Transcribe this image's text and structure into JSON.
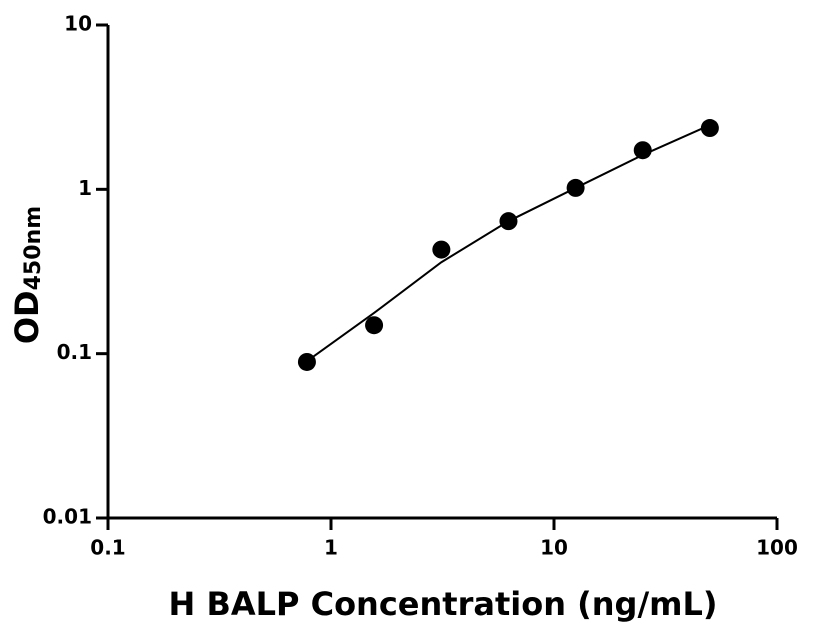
{
  "chart_data": {
    "type": "scatter",
    "xlabel": "H BALP Concentration (ng/mL)",
    "ylabel": "OD",
    "ylabel_sub": "450nm",
    "xscale": "log",
    "yscale": "log",
    "xlim": [
      0.1,
      100
    ],
    "xticks": [
      0.1,
      1,
      10,
      100
    ],
    "ylim": [
      0.01,
      10
    ],
    "yticks": [
      0.01,
      0.1,
      1,
      10
    ],
    "series": [
      {
        "mode": "markers",
        "color": "#000000",
        "x": [
          0.78,
          1.56,
          3.125,
          6.25,
          12.5,
          25,
          50
        ],
        "values": [
          0.089,
          0.149,
          0.43,
          0.64,
          1.02,
          1.73,
          2.36
        ]
      },
      {
        "mode": "line",
        "color": "#000000",
        "x": [
          0.78,
          1.56,
          3.125,
          6.25,
          12.5,
          25,
          50
        ],
        "values": [
          0.09,
          0.177,
          0.36,
          0.64,
          1.02,
          1.62,
          2.46
        ]
      }
    ]
  }
}
